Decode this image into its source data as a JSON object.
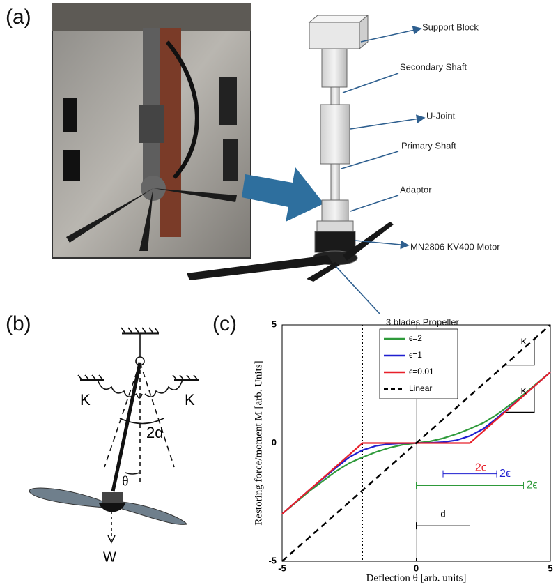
{
  "panel_labels": [
    "(a)",
    "(b)",
    "(c)"
  ],
  "cad_labels": [
    "Support Block",
    "Secondary Shaft",
    "U-Joint",
    "Primary Shaft",
    "Adaptor",
    "MN2806 KV400 Motor",
    "3 blades Propeller"
  ],
  "diagram_b": {
    "spring_left": "K",
    "spring_right": "K",
    "angle_range": "2d",
    "angle": "θ",
    "weight": "W"
  },
  "chart_data": {
    "type": "line",
    "xlabel": "Deflection θ [arb. units]",
    "ylabel": "Restoring force/moment M [arb. Units]",
    "xlim": [
      -5,
      5
    ],
    "ylim": [
      -5,
      5
    ],
    "xticks": [
      -5,
      0,
      5
    ],
    "yticks": [
      -5,
      0,
      5
    ],
    "x": [
      -5,
      -4,
      -3,
      -2.5,
      -2,
      -1.5,
      -1,
      -0.5,
      0,
      0.5,
      1,
      1.5,
      2,
      2.5,
      3,
      4,
      5
    ],
    "series": [
      {
        "name": "ϵ=2",
        "color": "#2e9a3a",
        "values": [
          -3,
          -2.05,
          -1.2,
          -0.85,
          -0.6,
          -0.38,
          -0.2,
          -0.07,
          0,
          0.07,
          0.2,
          0.38,
          0.6,
          0.85,
          1.2,
          2.05,
          3
        ]
      },
      {
        "name": "ϵ=1",
        "color": "#1f1fd0",
        "values": [
          -3,
          -2,
          -1.05,
          -0.6,
          -0.3,
          -0.12,
          -0.04,
          -0.01,
          0,
          0.01,
          0.04,
          0.12,
          0.3,
          0.6,
          1.05,
          2,
          3
        ]
      },
      {
        "name": "ϵ=0.01",
        "color": "#e8202a",
        "values": [
          -3,
          -2,
          -1,
          -0.5,
          0,
          0,
          0,
          0,
          0,
          0,
          0,
          0,
          0,
          0.5,
          1,
          2,
          3
        ]
      },
      {
        "name": "Linear",
        "color": "#000000",
        "dashed": true,
        "values": [
          -5,
          -4,
          -3,
          -2.5,
          -2,
          -1.5,
          -1,
          -0.5,
          0,
          0.5,
          1,
          1.5,
          2,
          2.5,
          3,
          4,
          5
        ]
      }
    ],
    "reference_lines": [
      -2,
      2
    ],
    "brackets": [
      {
        "label": "2ϵ",
        "from": 1,
        "to": 3,
        "y": -1.3,
        "color": "#1f1fd0"
      },
      {
        "label": "2ϵ",
        "from": 0,
        "to": 4,
        "y": -1.8,
        "color": "#2e9a3a"
      },
      {
        "label": "d",
        "from": 0,
        "to": 2,
        "y": -3.5,
        "color": "#000000"
      }
    ],
    "annotations": [
      {
        "text": "κ",
        "x": 4,
        "y": 4.3,
        "color": "#000000"
      },
      {
        "text": "κ",
        "x": 4,
        "y": 2.2,
        "color": "#000000"
      },
      {
        "text": "2ϵ",
        "x": 2.4,
        "y": -1.05,
        "color": "#e8202a"
      }
    ]
  }
}
